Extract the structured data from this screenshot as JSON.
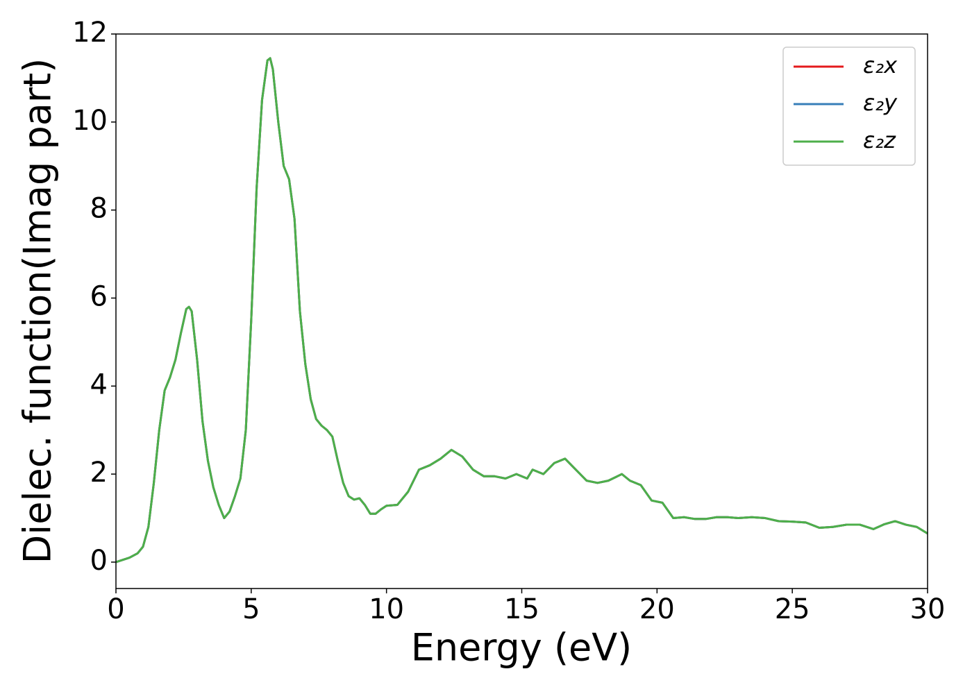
{
  "chart_data": {
    "type": "line",
    "xlabel": "Energy (eV)",
    "ylabel": "Dielec. function(Imag part)",
    "x": [
      0,
      0.5,
      0.8,
      1.0,
      1.2,
      1.4,
      1.6,
      1.8,
      2.0,
      2.2,
      2.4,
      2.6,
      2.7,
      2.8,
      3.0,
      3.2,
      3.4,
      3.6,
      3.8,
      4.0,
      4.2,
      4.4,
      4.6,
      4.8,
      5.0,
      5.2,
      5.4,
      5.6,
      5.7,
      5.8,
      6.0,
      6.2,
      6.4,
      6.6,
      6.8,
      7.0,
      7.2,
      7.4,
      7.6,
      7.8,
      8.0,
      8.2,
      8.4,
      8.6,
      8.8,
      9.0,
      9.2,
      9.4,
      9.6,
      9.8,
      10.0,
      10.4,
      10.8,
      11.2,
      11.6,
      12.0,
      12.4,
      12.8,
      13.2,
      13.6,
      14.0,
      14.4,
      14.8,
      15.2,
      15.4,
      15.8,
      16.2,
      16.6,
      17.0,
      17.4,
      17.8,
      18.2,
      18.7,
      19.0,
      19.4,
      19.8,
      20.2,
      20.6,
      21.0,
      21.4,
      21.8,
      22.2,
      22.6,
      23.0,
      23.5,
      24.0,
      24.5,
      25.0,
      25.5,
      26.0,
      26.5,
      27.0,
      27.5,
      28.0,
      28.4,
      28.8,
      29.2,
      29.6,
      30.0
    ],
    "series": [
      {
        "name": "ε₂x",
        "color": "#e41a1c",
        "values": [
          0.0,
          0.1,
          0.2,
          0.35,
          0.8,
          1.8,
          3.0,
          3.9,
          4.2,
          4.6,
          5.2,
          5.75,
          5.8,
          5.7,
          4.6,
          3.2,
          2.3,
          1.7,
          1.3,
          1.0,
          1.15,
          1.5,
          1.9,
          3.0,
          5.5,
          8.5,
          10.5,
          11.4,
          11.45,
          11.2,
          10.0,
          9.0,
          8.7,
          7.8,
          5.7,
          4.5,
          3.7,
          3.25,
          3.1,
          3.0,
          2.85,
          2.3,
          1.8,
          1.5,
          1.42,
          1.45,
          1.3,
          1.1,
          1.1,
          1.2,
          1.28,
          1.3,
          1.6,
          2.1,
          2.2,
          2.35,
          2.55,
          2.4,
          2.1,
          1.95,
          1.95,
          1.9,
          2.0,
          1.9,
          2.1,
          2.0,
          2.25,
          2.35,
          2.1,
          1.85,
          1.8,
          1.85,
          2.0,
          1.85,
          1.75,
          1.4,
          1.35,
          1.0,
          1.02,
          0.98,
          0.98,
          1.02,
          1.02,
          1.0,
          1.02,
          1.0,
          0.93,
          0.92,
          0.9,
          0.78,
          0.8,
          0.85,
          0.85,
          0.75,
          0.86,
          0.93,
          0.85,
          0.8,
          0.65
        ]
      },
      {
        "name": "ε₂y",
        "color": "#377eb8",
        "values": [
          0.0,
          0.1,
          0.2,
          0.35,
          0.8,
          1.8,
          3.0,
          3.9,
          4.2,
          4.6,
          5.2,
          5.75,
          5.8,
          5.7,
          4.6,
          3.2,
          2.3,
          1.7,
          1.3,
          1.0,
          1.15,
          1.5,
          1.9,
          3.0,
          5.5,
          8.5,
          10.5,
          11.4,
          11.45,
          11.2,
          10.0,
          9.0,
          8.7,
          7.8,
          5.7,
          4.5,
          3.7,
          3.25,
          3.1,
          3.0,
          2.85,
          2.3,
          1.8,
          1.5,
          1.42,
          1.45,
          1.3,
          1.1,
          1.1,
          1.2,
          1.28,
          1.3,
          1.6,
          2.1,
          2.2,
          2.35,
          2.55,
          2.4,
          2.1,
          1.95,
          1.95,
          1.9,
          2.0,
          1.9,
          2.1,
          2.0,
          2.25,
          2.35,
          2.1,
          1.85,
          1.8,
          1.85,
          2.0,
          1.85,
          1.75,
          1.4,
          1.35,
          1.0,
          1.02,
          0.98,
          0.98,
          1.02,
          1.02,
          1.0,
          1.02,
          1.0,
          0.93,
          0.92,
          0.9,
          0.78,
          0.8,
          0.85,
          0.85,
          0.75,
          0.86,
          0.93,
          0.85,
          0.8,
          0.65
        ]
      },
      {
        "name": "ε₂z",
        "color": "#4daf4a",
        "values": [
          0.0,
          0.1,
          0.2,
          0.35,
          0.8,
          1.8,
          3.0,
          3.9,
          4.2,
          4.6,
          5.2,
          5.75,
          5.8,
          5.7,
          4.6,
          3.2,
          2.3,
          1.7,
          1.3,
          1.0,
          1.15,
          1.5,
          1.9,
          3.0,
          5.5,
          8.5,
          10.5,
          11.4,
          11.45,
          11.2,
          10.0,
          9.0,
          8.7,
          7.8,
          5.7,
          4.5,
          3.7,
          3.25,
          3.1,
          3.0,
          2.85,
          2.3,
          1.8,
          1.5,
          1.42,
          1.45,
          1.3,
          1.1,
          1.1,
          1.2,
          1.28,
          1.3,
          1.6,
          2.1,
          2.2,
          2.35,
          2.55,
          2.4,
          2.1,
          1.95,
          1.95,
          1.9,
          2.0,
          1.9,
          2.1,
          2.0,
          2.25,
          2.35,
          2.1,
          1.85,
          1.8,
          1.85,
          2.0,
          1.85,
          1.75,
          1.4,
          1.35,
          1.0,
          1.02,
          0.98,
          0.98,
          1.02,
          1.02,
          1.0,
          1.02,
          1.0,
          0.93,
          0.92,
          0.9,
          0.78,
          0.8,
          0.85,
          0.85,
          0.75,
          0.86,
          0.93,
          0.85,
          0.8,
          0.65
        ]
      }
    ],
    "xlim": [
      0,
      30
    ],
    "xticks": [
      0,
      5,
      10,
      15,
      20,
      25,
      30
    ],
    "ylim": [
      -0.6,
      12
    ],
    "yticks": [
      0,
      2,
      4,
      6,
      8,
      10,
      12
    ],
    "grid": false,
    "legend": "upper right"
  }
}
